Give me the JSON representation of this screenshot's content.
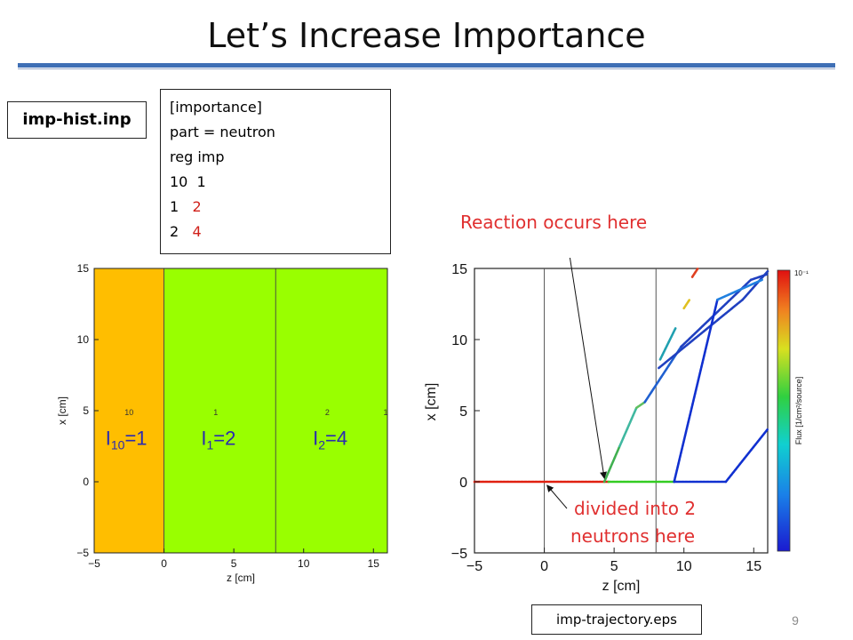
{
  "title": "Let’s Increase Importance",
  "file_input": "imp-hist.inp",
  "code_lines": [
    {
      "a": "[importance]",
      "b": ""
    },
    {
      "a": "part = neutron",
      "b": ""
    },
    {
      "a": "reg imp",
      "b": ""
    },
    {
      "a": "10  1",
      "b": ""
    },
    {
      "a": "1   ",
      "b": "2"
    },
    {
      "a": "2   ",
      "b": "4"
    }
  ],
  "note_reaction": "Reaction occurs here",
  "note_divided_1": "divided into 2",
  "note_divided_2": "neutrons here",
  "file_output": "imp-trajectory.eps",
  "page_number": "9",
  "colors": {
    "title_rule": "#3f6fb5",
    "region10": "#ffbe00",
    "region1": "#99ff00",
    "region2": "#99ff00",
    "annotation": "#e03030",
    "importance_label": "#2a2ab0"
  },
  "chart_data": [
    {
      "type": "heatmap",
      "xlabel": "z [cm]",
      "ylabel": "x [cm]",
      "xlim": [
        -5,
        16
      ],
      "ylim": [
        -5,
        15
      ],
      "xticks": [
        "−5",
        "0",
        "5",
        "10",
        "15"
      ],
      "yticks": [
        "−5",
        "0",
        "5",
        "10",
        "15"
      ],
      "regions": [
        {
          "id": "10",
          "z": [
            -5,
            0
          ],
          "label_z": -2.5
        },
        {
          "id": "1",
          "z": [
            0,
            8
          ],
          "label_z": 3.7
        },
        {
          "id": "2",
          "z": [
            8,
            16
          ],
          "label_z": 11.7
        }
      ],
      "region_edge_label": "1",
      "importance_labels": [
        {
          "base": "I",
          "sub": "10",
          "value": "=1"
        },
        {
          "base": "I",
          "sub": "1",
          "value": "=2"
        },
        {
          "base": "I",
          "sub": "2",
          "value": "=4"
        }
      ]
    },
    {
      "type": "scatter",
      "xlabel": "z [cm]",
      "ylabel": "x [cm]",
      "xlim": [
        -5,
        16
      ],
      "ylim": [
        -5,
        15
      ],
      "xticks": [
        "−5",
        "0",
        "5",
        "10",
        "15"
      ],
      "yticks": [
        "−5",
        "0",
        "5",
        "10",
        "15"
      ],
      "boundaries_z": [
        0,
        8
      ],
      "colorbar_label": "Flux [1/cm²/source]",
      "colorbar_top": "10⁻¹",
      "tracks": [
        {
          "color": "#e02010",
          "points": [
            [
              -5,
              0
            ],
            [
              4.6,
              0
            ]
          ]
        },
        {
          "color": "#33cc22",
          "points": [
            [
              4.6,
              0
            ],
            [
              9.3,
              0
            ]
          ]
        },
        {
          "color": "#1030d0",
          "points": [
            [
              9.3,
              0
            ],
            [
              13,
              0
            ]
          ]
        },
        {
          "color": "#40b050",
          "points": [
            [
              4.3,
              0
            ],
            [
              5.4,
              2.5
            ]
          ]
        },
        {
          "color": "#40b8a0",
          "points": [
            [
              5.4,
              2.5
            ],
            [
              6.6,
              5.2
            ]
          ]
        },
        {
          "color": "#60c060",
          "points": [
            [
              6.6,
              5.2
            ],
            [
              7.2,
              5.6
            ]
          ]
        },
        {
          "color": "#2060d0",
          "points": [
            [
              7.2,
              5.6
            ],
            [
              9.8,
              9.5
            ]
          ]
        },
        {
          "color": "#2040c0",
          "points": [
            [
              9.8,
              9.5
            ],
            [
              14.8,
              14.2
            ]
          ]
        },
        {
          "color": "#2040c0",
          "points": [
            [
              14.8,
              14.2
            ],
            [
              16,
              14.6
            ]
          ]
        },
        {
          "color": "#2040c0",
          "points": [
            [
              8.2,
              8.0
            ],
            [
              14.2,
              12.8
            ]
          ]
        },
        {
          "color": "#2040c0",
          "points": [
            [
              14.2,
              12.8
            ],
            [
              16,
              14.8
            ]
          ]
        },
        {
          "color": "#1030d0",
          "points": [
            [
              9.3,
              0
            ],
            [
              12.4,
              12.8
            ]
          ]
        },
        {
          "color": "#2080e0",
          "points": [
            [
              12.4,
              12.8
            ],
            [
              15.6,
              14.2
            ]
          ]
        },
        {
          "color": "#20a0b0",
          "points": [
            [
              8.3,
              8.6
            ],
            [
              9.4,
              10.8
            ]
          ]
        },
        {
          "color": "#e0c020",
          "points": [
            [
              10.0,
              12.2
            ],
            [
              10.4,
              12.8
            ]
          ]
        },
        {
          "color": "#e04020",
          "points": [
            [
              10.6,
              14.4
            ],
            [
              11.0,
              15
            ]
          ]
        },
        {
          "color": "#1030d0",
          "points": [
            [
              13,
              0
            ],
            [
              16,
              3.7
            ]
          ]
        }
      ]
    }
  ]
}
